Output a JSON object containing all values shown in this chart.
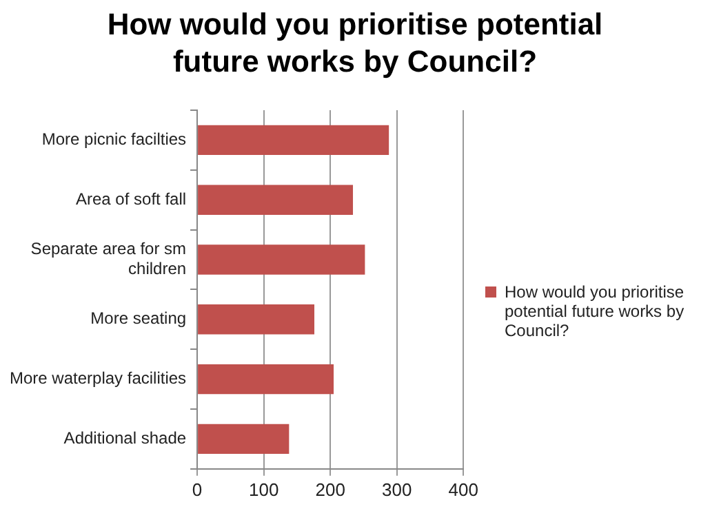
{
  "chart_data": {
    "type": "bar",
    "orientation": "horizontal",
    "title": "How would you prioritise potential future works by Council?",
    "categories": [
      "More picnic facilties",
      "Area of soft fall",
      "Separate  area for sm children",
      "More seating",
      "More waterplay facilities",
      "Additional shade"
    ],
    "series": [
      {
        "name": "How would you prioritise potential future works by Council?",
        "color": "#c0504d",
        "values": [
          288,
          234,
          252,
          176,
          205,
          138
        ]
      }
    ],
    "xlim": [
      0,
      400
    ],
    "xticks": [
      0,
      100,
      200,
      300,
      400
    ],
    "grid": "x",
    "legend": "right"
  }
}
